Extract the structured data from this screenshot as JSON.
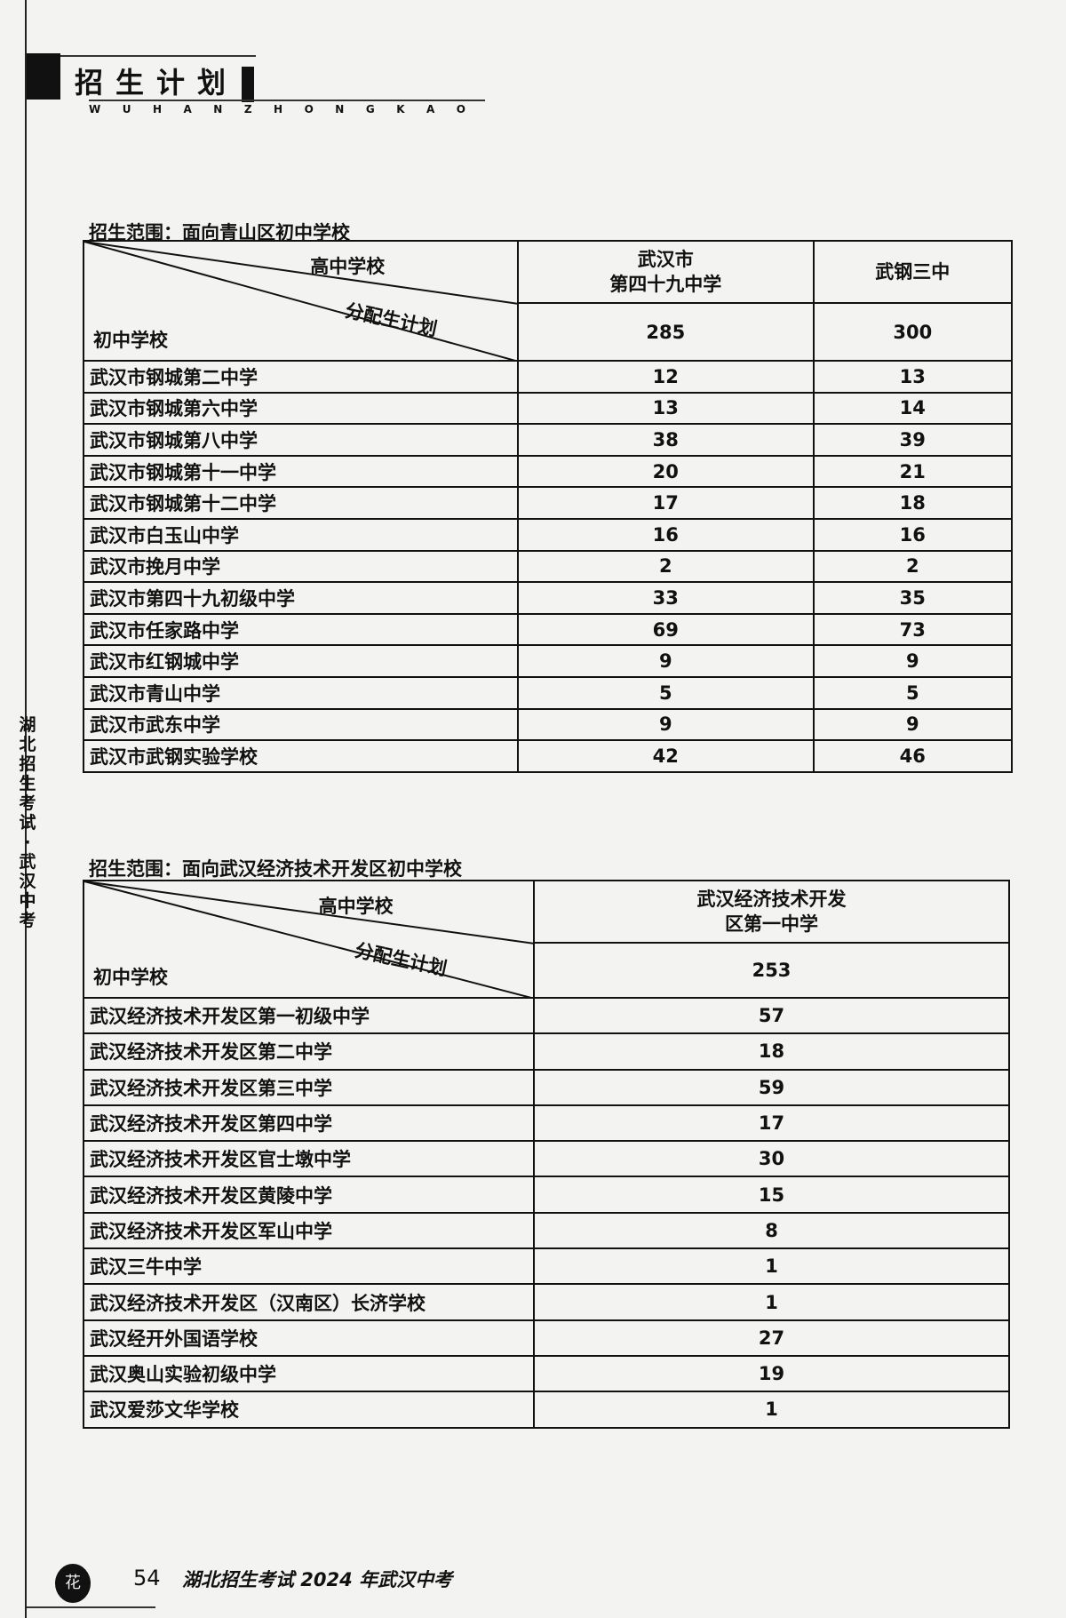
{
  "header": {
    "title": "招生计划",
    "subtitle": "WUHANZHONGKAO"
  },
  "side_text": "湖北招生考试·武汉中考",
  "table1": {
    "caption": "招生范围：面向青山区初中学校",
    "corner": {
      "top": "高中学校",
      "mid": "分配生计划",
      "bottom": "初中学校"
    },
    "columns": [
      {
        "name": "武汉市\n第四十九中学",
        "total": "285"
      },
      {
        "name": "武钢三中",
        "total": "300"
      }
    ],
    "rows": [
      {
        "school": "武汉市钢城第二中学",
        "values": [
          "12",
          "13"
        ]
      },
      {
        "school": "武汉市钢城第六中学",
        "values": [
          "13",
          "14"
        ]
      },
      {
        "school": "武汉市钢城第八中学",
        "values": [
          "38",
          "39"
        ]
      },
      {
        "school": "武汉市钢城第十一中学",
        "values": [
          "20",
          "21"
        ]
      },
      {
        "school": "武汉市钢城第十二中学",
        "values": [
          "17",
          "18"
        ]
      },
      {
        "school": "武汉市白玉山中学",
        "values": [
          "16",
          "16"
        ]
      },
      {
        "school": "武汉市挽月中学",
        "values": [
          "2",
          "2"
        ]
      },
      {
        "school": "武汉市第四十九初级中学",
        "values": [
          "33",
          "35"
        ]
      },
      {
        "school": "武汉市任家路中学",
        "values": [
          "69",
          "73"
        ]
      },
      {
        "school": "武汉市红钢城中学",
        "values": [
          "9",
          "9"
        ]
      },
      {
        "school": "武汉市青山中学",
        "values": [
          "5",
          "5"
        ]
      },
      {
        "school": "武汉市武东中学",
        "values": [
          "9",
          "9"
        ]
      },
      {
        "school": "武汉市武钢实验学校",
        "values": [
          "42",
          "46"
        ]
      }
    ]
  },
  "table2": {
    "caption": "招生范围：面向武汉经济技术开发区初中学校",
    "corner": {
      "top": "高中学校",
      "mid": "分配生计划",
      "bottom": "初中学校"
    },
    "columns": [
      {
        "name": "武汉经济技术开发\n区第一中学",
        "total": "253"
      }
    ],
    "rows": [
      {
        "school": "武汉经济技术开发区第一初级中学",
        "values": [
          "57"
        ]
      },
      {
        "school": "武汉经济技术开发区第二中学",
        "values": [
          "18"
        ]
      },
      {
        "school": "武汉经济技术开发区第三中学",
        "values": [
          "59"
        ]
      },
      {
        "school": "武汉经济技术开发区第四中学",
        "values": [
          "17"
        ]
      },
      {
        "school": "武汉经济技术开发区官士墩中学",
        "values": [
          "30"
        ]
      },
      {
        "school": "武汉经济技术开发区黄陵中学",
        "values": [
          "15"
        ]
      },
      {
        "school": "武汉经济技术开发区军山中学",
        "values": [
          "8"
        ]
      },
      {
        "school": "武汉三牛中学",
        "values": [
          "1"
        ]
      },
      {
        "school": "武汉经济技术开发区（汉南区）长济学校",
        "values": [
          "1"
        ]
      },
      {
        "school": "武汉经开外国语学校",
        "values": [
          "27"
        ]
      },
      {
        "school": "武汉奥山实验初级中学",
        "values": [
          "19"
        ]
      },
      {
        "school": "武汉爱莎文华学校",
        "values": [
          "1"
        ]
      }
    ]
  },
  "footer": {
    "page_number": "54",
    "text": "湖北招生考试 2024 年武汉中考",
    "logo_text": "花"
  }
}
